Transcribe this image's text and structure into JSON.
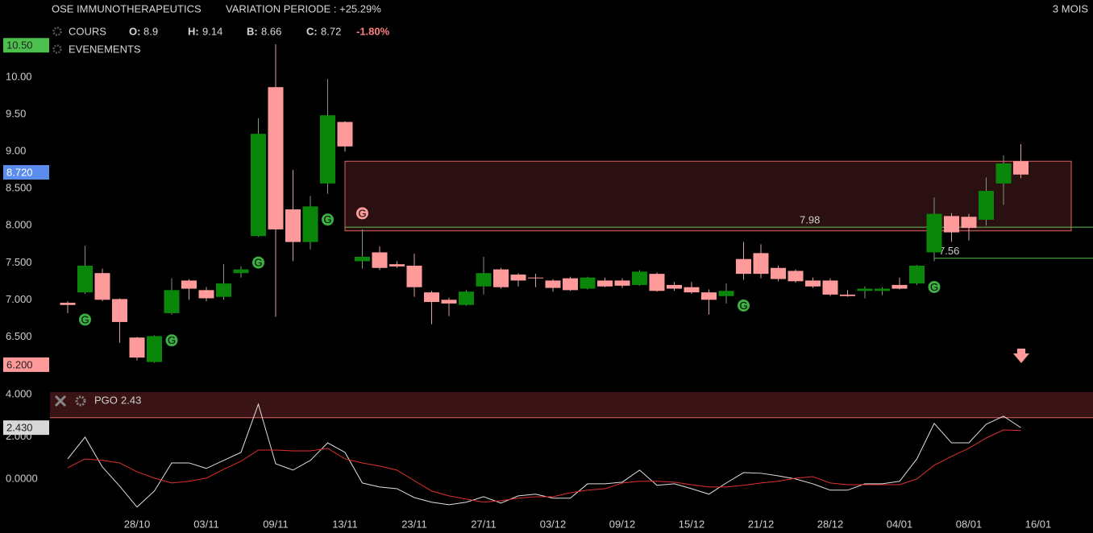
{
  "chart_data": {
    "type": "candlestick",
    "title": "OSE IMMUNOTHERAPEUTICS",
    "subtitle": "VARIATION PERIODE : +25.29%",
    "period": "3 MOIS",
    "series_label": "COURS",
    "events_label": "EVENEMENTS",
    "ohlc_summary": [
      {
        "label": "O:",
        "value": 8.9
      },
      {
        "label": "H:",
        "value": 9.14
      },
      {
        "label": "B:",
        "value": 8.66
      },
      {
        "label": "C:",
        "value": 8.72
      }
    ],
    "change": "-1.80%",
    "up_color": "#0a870a",
    "down_color": "#ff9a9a",
    "categories": [
      null,
      null,
      null,
      null,
      "28/10",
      null,
      null,
      null,
      "03/11",
      null,
      null,
      null,
      "09/11",
      null,
      null,
      null,
      "13/11",
      null,
      null,
      null,
      "23/11",
      null,
      null,
      null,
      "27/11",
      null,
      null,
      null,
      "03/12",
      null,
      null,
      null,
      "09/12",
      null,
      null,
      null,
      "15/12",
      null,
      null,
      null,
      "21/12",
      null,
      null,
      null,
      "28/12",
      null,
      null,
      null,
      "04/01",
      null,
      null,
      null,
      "08/01",
      null,
      null,
      null,
      "16/01"
    ],
    "open": [
      6.96,
      7.1,
      7.36,
      7.01,
      6.49,
      6.16,
      6.82,
      7.26,
      7.13,
      7.04,
      7.36,
      7.86,
      9.87,
      8.22,
      7.78,
      8.57,
      9.4,
      7.52,
      7.64,
      7.48,
      7.46,
      7.1,
      7.0,
      6.93,
      7.18,
      7.41,
      7.34,
      7.3,
      7.26,
      7.29,
      7.15,
      7.26,
      7.26,
      7.2,
      7.35,
      7.2,
      7.17,
      7.1,
      7.05,
      7.55,
      7.63,
      7.43,
      7.39,
      7.26,
      7.26,
      7.07,
      7.12,
      7.12,
      7.2,
      7.22,
      7.64,
      8.13,
      8.12,
      8.08,
      8.57,
      8.87,
      null
    ],
    "high": [
      6.98,
      7.73,
      7.42,
      7.02,
      6.5,
      6.52,
      7.29,
      7.28,
      7.17,
      7.48,
      7.45,
      9.45,
      10.45,
      8.75,
      8.4,
      9.98,
      9.41,
      7.95,
      7.72,
      7.52,
      7.62,
      7.12,
      7.03,
      7.13,
      7.58,
      7.43,
      7.36,
      7.35,
      7.28,
      7.31,
      7.31,
      7.3,
      7.29,
      7.4,
      7.37,
      7.24,
      7.24,
      7.14,
      7.22,
      7.78,
      7.75,
      7.46,
      7.41,
      7.3,
      7.29,
      7.13,
      7.18,
      7.17,
      7.3,
      7.47,
      8.38,
      8.17,
      8.16,
      8.65,
      8.95,
      9.1,
      null
    ],
    "low": [
      6.82,
      7.08,
      6.98,
      6.42,
      6.18,
      6.15,
      6.8,
      7.0,
      6.98,
      7.0,
      7.3,
      7.85,
      6.77,
      7.52,
      7.68,
      8.43,
      9.0,
      7.42,
      7.4,
      7.43,
      7.04,
      6.67,
      6.78,
      6.92,
      7.07,
      7.15,
      7.18,
      7.17,
      7.11,
      7.12,
      7.14,
      7.17,
      7.16,
      7.19,
      7.11,
      7.12,
      7.08,
      6.8,
      6.95,
      7.27,
      7.29,
      7.25,
      7.23,
      7.16,
      7.05,
      7.04,
      7.02,
      7.06,
      7.14,
      7.2,
      7.52,
      7.78,
      7.8,
      8.0,
      8.28,
      8.64,
      null
    ],
    "close": [
      6.93,
      7.46,
      7.0,
      6.7,
      6.22,
      6.51,
      7.13,
      7.15,
      7.02,
      7.22,
      7.41,
      9.24,
      7.95,
      7.78,
      8.26,
      9.49,
      9.07,
      7.58,
      7.43,
      7.45,
      7.17,
      6.97,
      6.95,
      7.11,
      7.36,
      7.17,
      7.26,
      7.29,
      7.16,
      7.13,
      7.3,
      7.18,
      7.19,
      7.38,
      7.12,
      7.15,
      7.1,
      7.0,
      7.12,
      7.35,
      7.35,
      7.28,
      7.25,
      7.18,
      7.07,
      7.05,
      7.15,
      7.15,
      7.15,
      7.46,
      8.16,
      7.91,
      7.97,
      8.47,
      8.84,
      8.69,
      null
    ],
    "ylim": [
      5.83,
      10.72
    ],
    "yticks": [
      {
        "value": 10,
        "label": "10.00"
      },
      {
        "value": 9.5,
        "label": "9.50"
      },
      {
        "value": 9,
        "label": "9.00"
      },
      {
        "value": 8.5,
        "label": "8.500"
      },
      {
        "value": 8,
        "label": "8.000"
      },
      {
        "value": 7.5,
        "label": "7.500"
      },
      {
        "value": 7,
        "label": "7.000"
      },
      {
        "value": 6.5,
        "label": "6.500"
      }
    ],
    "value_boxes": [
      {
        "value": 10.5,
        "label": "10.50",
        "color": "#4cc04c"
      },
      {
        "value": 8.72,
        "label": "8.720",
        "color": "#5b8def"
      },
      {
        "value": 6.2,
        "label": "6.200",
        "color": "#ff9a9a"
      }
    ],
    "zone": {
      "from": 16,
      "high": 8.87,
      "low": 7.93,
      "color": "#2a1010",
      "border": "#e06060"
    },
    "levels": [
      {
        "value": 7.98,
        "from": 16,
        "color": "#5cc05c"
      },
      {
        "value": 7.56,
        "from": 50,
        "color": "#5cc05c"
      }
    ],
    "events": [
      {
        "index": 1,
        "label": "G",
        "color": "#3cb043"
      },
      {
        "index": 6,
        "label": "G",
        "color": "#3cb043"
      },
      {
        "index": 11,
        "label": "G",
        "color": "#3cb043"
      },
      {
        "index": 15,
        "label": "G",
        "color": "#3cb043"
      },
      {
        "index": 17,
        "label": "G",
        "color": "#ff9a9a"
      },
      {
        "index": 39,
        "label": "G",
        "color": "#3cb043"
      },
      {
        "index": 50,
        "label": "G",
        "color": "#3cb043"
      }
    ],
    "indicator": {
      "type": "line",
      "name": "PGO",
      "value": 2.43,
      "ylim": [
        -2.1,
        4.15
      ],
      "yticks": [
        {
          "value": 4,
          "label": "4.000"
        },
        {
          "value": 2,
          "label": "2.000"
        },
        {
          "value": 0,
          "label": "0.0000"
        }
      ],
      "band": {
        "low": 2.9,
        "high": 4.15,
        "color": "#3a1414",
        "border": "#e06060"
      },
      "value_box": {
        "value": 2.43,
        "label": "2.430",
        "color": "#d8d8d8"
      },
      "series": [
        {
          "color": "#e0e0e0",
          "values": [
            0.95,
            1.98,
            0.57,
            -0.34,
            -1.33,
            -0.57,
            0.76,
            0.76,
            0.5,
            0.88,
            1.26,
            3.54,
            0.72,
            0.42,
            0.88,
            1.71,
            1.26,
            -0.19,
            -0.38,
            -0.46,
            -0.88,
            -1.1,
            -1.22,
            -1.1,
            -0.84,
            -1.14,
            -0.8,
            -0.72,
            -0.91,
            -0.91,
            -0.23,
            -0.23,
            -0.15,
            0.42,
            -0.3,
            -0.23,
            -0.46,
            -0.72,
            -0.19,
            0.3,
            0.27,
            0.15,
            0.0,
            -0.23,
            -0.53,
            -0.53,
            -0.23,
            -0.23,
            -0.11,
            0.95,
            2.63,
            1.71,
            1.71,
            2.59,
            2.97,
            2.43,
            null
          ]
        },
        {
          "color": "#e03030",
          "values": [
            0.53,
            0.95,
            0.88,
            0.76,
            0.34,
            0.04,
            -0.19,
            -0.11,
            0.04,
            0.46,
            0.84,
            1.37,
            1.37,
            1.33,
            1.33,
            1.45,
            0.95,
            0.76,
            0.61,
            0.42,
            -0.08,
            -0.57,
            -0.8,
            -0.95,
            -1.1,
            -1.03,
            -0.91,
            -0.84,
            -0.84,
            -0.65,
            -0.53,
            -0.46,
            -0.19,
            -0.11,
            -0.11,
            -0.15,
            -0.27,
            -0.38,
            -0.38,
            -0.3,
            -0.19,
            -0.11,
            0.04,
            0.11,
            -0.19,
            -0.27,
            -0.27,
            -0.27,
            -0.27,
            0.0,
            0.65,
            1.07,
            1.45,
            1.94,
            2.32,
            2.29,
            null
          ]
        }
      ]
    }
  }
}
